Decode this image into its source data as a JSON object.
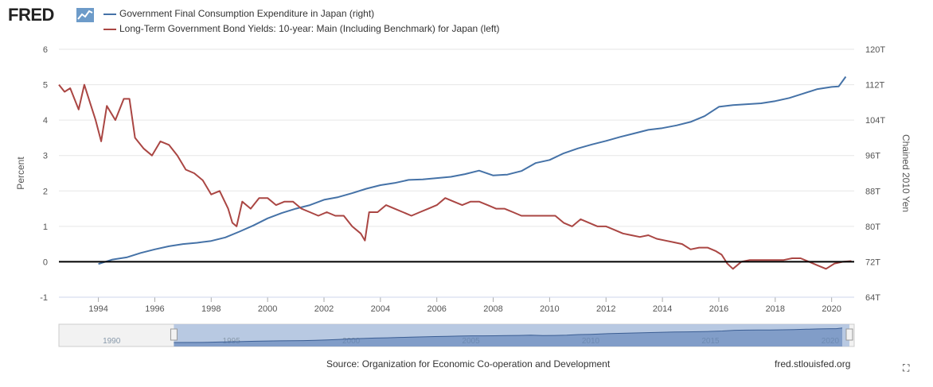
{
  "header": {
    "logo_text": "FRED",
    "logo_icon": "line-graph-icon"
  },
  "chart_data": {
    "type": "line",
    "axis_labels": {
      "left": "Percent",
      "right": "Chained 2010 Yen"
    },
    "left_axis": {
      "ylim": [
        -1,
        6
      ],
      "ticks": [
        "-1",
        "0",
        "1",
        "2",
        "3",
        "4",
        "5",
        "6"
      ]
    },
    "right_axis": {
      "ylim": [
        64,
        120
      ],
      "ticks": [
        "64T",
        "72T",
        "80T",
        "88T",
        "96T",
        "104T",
        "112T",
        "120T"
      ]
    },
    "x_ticks": [
      "1994",
      "1996",
      "1998",
      "2000",
      "2002",
      "2004",
      "2006",
      "2008",
      "2010",
      "2012",
      "2014",
      "2016",
      "2018",
      "2020"
    ],
    "xlim": [
      1992.6,
      2020.8
    ],
    "zero_line": true,
    "grid": true,
    "legend_position": "top-left",
    "series": [
      {
        "name": "Government Final Consumption Expenditure in Japan (right)",
        "axis": "right",
        "color": "#4572a7",
        "x": [
          1994.0,
          1994.5,
          1995.0,
          1995.5,
          1996.0,
          1996.5,
          1997.0,
          1997.5,
          1998.0,
          1998.5,
          1999.0,
          1999.5,
          2000.0,
          2000.5,
          2001.0,
          2001.5,
          2002.0,
          2002.5,
          2003.0,
          2003.5,
          2004.0,
          2004.5,
          2005.0,
          2005.5,
          2006.0,
          2006.5,
          2007.0,
          2007.5,
          2008.0,
          2008.5,
          2009.0,
          2009.5,
          2010.0,
          2010.5,
          2011.0,
          2011.5,
          2012.0,
          2012.5,
          2013.0,
          2013.5,
          2014.0,
          2014.5,
          2015.0,
          2015.5,
          2016.0,
          2016.5,
          2017.0,
          2017.5,
          2018.0,
          2018.5,
          2019.0,
          2019.5,
          2020.0,
          2020.25,
          2020.5
        ],
        "values": [
          71.5,
          72.5,
          73.0,
          74.0,
          74.8,
          75.5,
          76.0,
          76.3,
          76.7,
          77.5,
          78.8,
          80.2,
          81.8,
          83.0,
          84.0,
          84.8,
          86.0,
          86.6,
          87.5,
          88.5,
          89.3,
          89.8,
          90.5,
          90.6,
          90.9,
          91.2,
          91.8,
          92.6,
          91.5,
          91.7,
          92.5,
          94.3,
          95.0,
          96.5,
          97.6,
          98.5,
          99.3,
          100.2,
          101.0,
          101.8,
          102.2,
          102.8,
          103.6,
          104.9,
          107.0,
          107.4,
          107.6,
          107.8,
          108.3,
          109.0,
          110.0,
          111.0,
          111.5,
          111.6,
          113.8
        ]
      },
      {
        "name": "Long-Term Government Bond Yields: 10-year: Main (Including Benchmark) for Japan (left)",
        "axis": "left",
        "color": "#aa4643",
        "x": [
          1992.6,
          1992.8,
          1993.0,
          1993.3,
          1993.5,
          1993.7,
          1993.9,
          1994.1,
          1994.3,
          1994.6,
          1994.9,
          1995.1,
          1995.3,
          1995.6,
          1995.9,
          1996.2,
          1996.5,
          1996.8,
          1997.1,
          1997.4,
          1997.7,
          1998.0,
          1998.3,
          1998.6,
          1998.75,
          1998.9,
          1999.1,
          1999.4,
          1999.7,
          2000.0,
          2000.3,
          2000.6,
          2000.9,
          2001.2,
          2001.5,
          2001.8,
          2002.1,
          2002.4,
          2002.7,
          2003.0,
          2003.3,
          2003.45,
          2003.6,
          2003.9,
          2004.2,
          2004.5,
          2004.8,
          2005.1,
          2005.4,
          2005.7,
          2006.0,
          2006.3,
          2006.6,
          2006.9,
          2007.2,
          2007.5,
          2007.8,
          2008.1,
          2008.4,
          2008.7,
          2009.0,
          2009.3,
          2009.6,
          2009.9,
          2010.2,
          2010.5,
          2010.8,
          2011.1,
          2011.4,
          2011.7,
          2012.0,
          2012.3,
          2012.6,
          2012.9,
          2013.2,
          2013.5,
          2013.8,
          2014.1,
          2014.4,
          2014.7,
          2015.0,
          2015.3,
          2015.6,
          2015.9,
          2016.1,
          2016.3,
          2016.5,
          2016.8,
          2017.1,
          2017.4,
          2017.7,
          2018.0,
          2018.3,
          2018.6,
          2018.9,
          2019.2,
          2019.5,
          2019.8,
          2020.1,
          2020.4,
          2020.7
        ],
        "values": [
          5.0,
          4.8,
          4.9,
          4.3,
          5.0,
          4.5,
          4.0,
          3.4,
          4.4,
          4.0,
          4.6,
          4.6,
          3.5,
          3.2,
          3.0,
          3.4,
          3.3,
          3.0,
          2.6,
          2.5,
          2.3,
          1.9,
          2.0,
          1.5,
          1.1,
          1.0,
          1.7,
          1.5,
          1.8,
          1.8,
          1.6,
          1.7,
          1.7,
          1.5,
          1.4,
          1.3,
          1.4,
          1.3,
          1.3,
          1.0,
          0.8,
          0.6,
          1.4,
          1.4,
          1.6,
          1.5,
          1.4,
          1.3,
          1.4,
          1.5,
          1.6,
          1.8,
          1.7,
          1.6,
          1.7,
          1.7,
          1.6,
          1.5,
          1.5,
          1.4,
          1.3,
          1.3,
          1.3,
          1.3,
          1.3,
          1.1,
          1.0,
          1.2,
          1.1,
          1.0,
          1.0,
          0.9,
          0.8,
          0.75,
          0.7,
          0.75,
          0.65,
          0.6,
          0.55,
          0.5,
          0.35,
          0.4,
          0.4,
          0.3,
          0.2,
          -0.05,
          -0.2,
          0.0,
          0.05,
          0.05,
          0.05,
          0.05,
          0.05,
          0.1,
          0.1,
          0.0,
          -0.1,
          -0.2,
          -0.05,
          0.0,
          0.02
        ]
      }
    ],
    "navigator": {
      "x_ticks": [
        "1990",
        "1995",
        "2000",
        "2005",
        "2010",
        "2015",
        "2020"
      ]
    }
  },
  "footer": {
    "source": "Source: Organization for Economic Co-operation and Development",
    "site": "fred.stlouisfed.org",
    "expand_icon": "fullscreen-icon"
  }
}
